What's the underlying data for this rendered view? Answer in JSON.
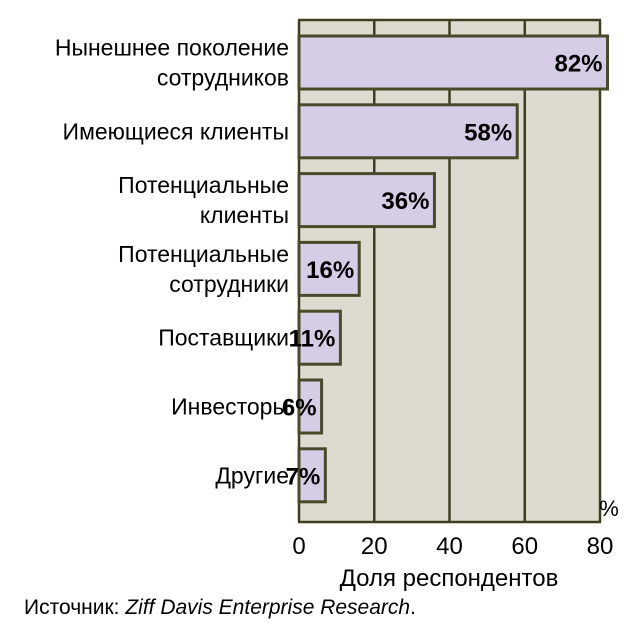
{
  "colors": {
    "plot_background": "#dddad0",
    "bar_fill": "#d6cce6",
    "bar_stroke": "#4a4a2a",
    "grid": "#3f3f20"
  },
  "chart_data": {
    "type": "bar",
    "orientation": "horizontal",
    "categories": [
      [
        "Нынешнее поколение",
        "сотрудников"
      ],
      [
        "Имеющиеся клиенты"
      ],
      [
        "Потенциальные",
        "клиенты"
      ],
      [
        "Потенциальные",
        "сотрудники"
      ],
      [
        "Поставщики"
      ],
      [
        "Инвесторы"
      ],
      [
        "Другие"
      ]
    ],
    "values": [
      82,
      58,
      36,
      16,
      11,
      6,
      7
    ],
    "value_labels": [
      "82%",
      "58%",
      "36%",
      "16%",
      "11%",
      "6%",
      "7%"
    ],
    "xlabel": "Доля респондентов",
    "x_unit": "%",
    "xlim": [
      0,
      80
    ],
    "x_ticks": [
      0,
      20,
      40,
      60,
      80
    ],
    "grid": true
  },
  "source": {
    "prefix": "Источник: ",
    "name": "Ziff Davis Enterprise Research",
    "suffix": "."
  }
}
